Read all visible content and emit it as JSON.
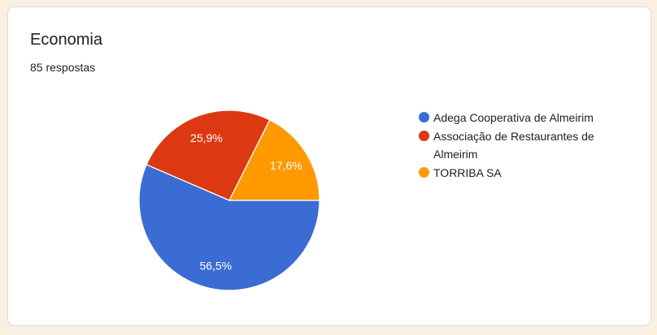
{
  "theme": {
    "page_background": "#F9F0E1",
    "card_background": "#FFFFFF",
    "card_border": "#DADCE0",
    "title_color": "#202124"
  },
  "card": {
    "title": "Economia",
    "responses_label": "85 respostas"
  },
  "chart_data": {
    "type": "pie",
    "title": "Economia",
    "subtitle": "85 respostas",
    "legend_position": "right",
    "start_angle_deg_clockwise_from_east": 0,
    "slices": [
      {
        "label": "Adega Cooperativa de Almeirim",
        "percent": 56.5,
        "percent_label": "56,5%",
        "color": "#3B6CD4"
      },
      {
        "label": "Associação de Restaurantes de Almeirim",
        "percent": 25.9,
        "percent_label": "25,9%",
        "color": "#DC3912"
      },
      {
        "label": "TORRIBA SA",
        "percent": 17.6,
        "percent_label": "17,6%",
        "color": "#FF9900"
      }
    ]
  }
}
